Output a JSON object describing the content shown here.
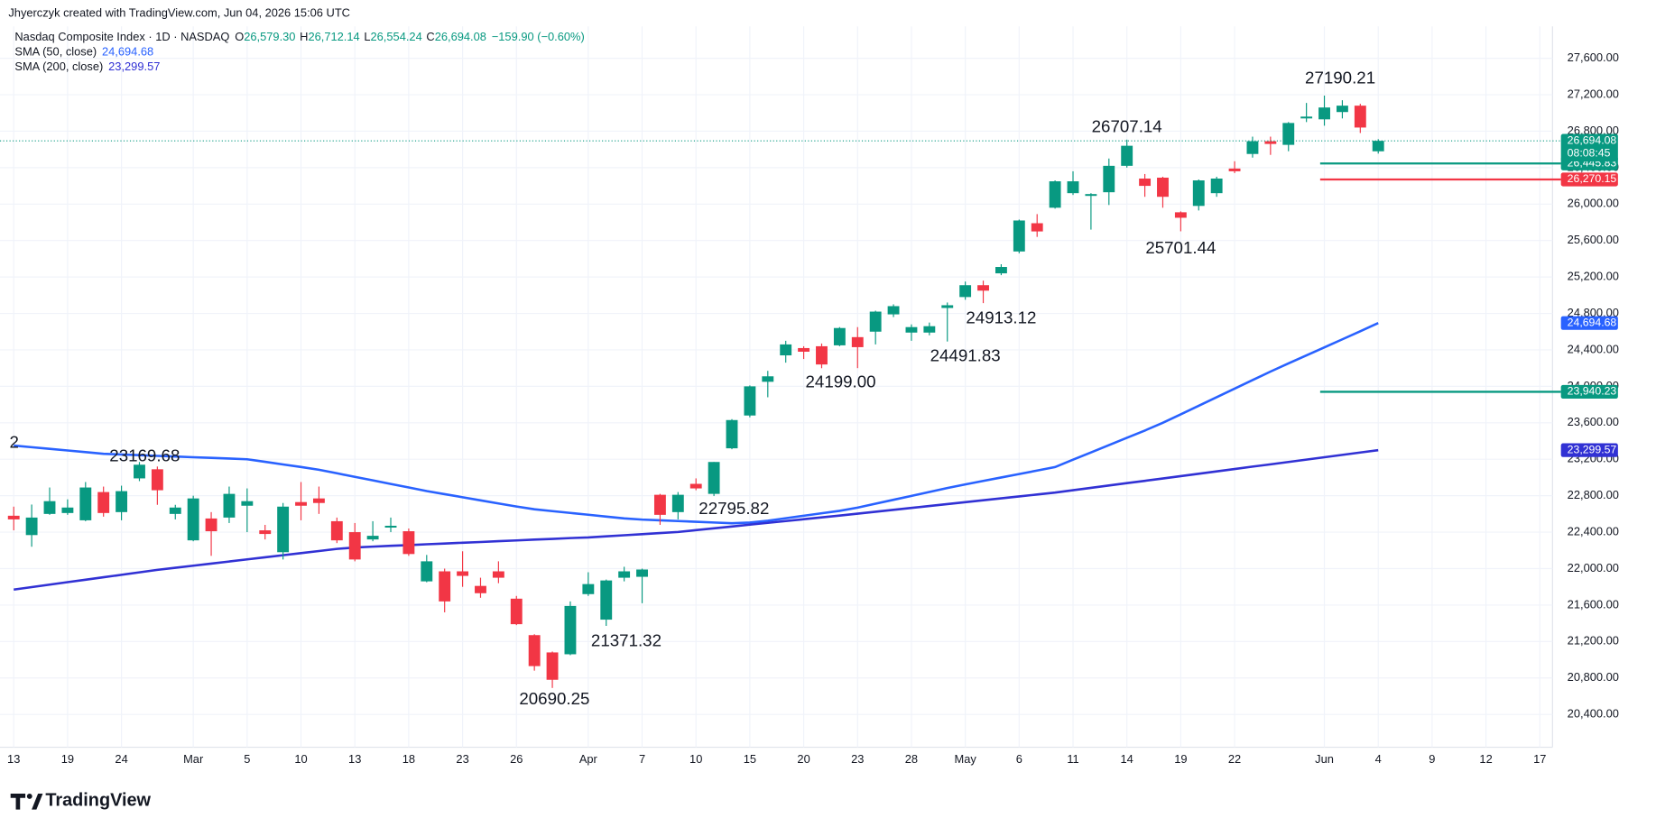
{
  "header": {
    "credit": "Jhyerczyk created with TradingView.com, Jun 04, 2026 15:06 UTC"
  },
  "footer": {
    "brand": "TradingView"
  },
  "chart_data": {
    "type": "candlestick",
    "title": "Nasdaq Composite Index · 1D · NASDAQ",
    "ohlc": [
      {
        "label": "O",
        "value": "26,579.30"
      },
      {
        "label": "H",
        "value": "26,712.14"
      },
      {
        "label": "L",
        "value": "26,554.24"
      },
      {
        "label": "C",
        "value": "26,694.08"
      }
    ],
    "change": "−159.90 (−0.60%)",
    "up_color": "#089981",
    "down_color": "#f23645",
    "categories": [
      "13",
      null,
      null,
      "19",
      null,
      null,
      "24",
      null,
      null,
      null,
      "Mar",
      null,
      null,
      "5",
      null,
      null,
      "10",
      null,
      null,
      "13",
      null,
      null,
      "18",
      null,
      null,
      "23",
      null,
      null,
      "26",
      null,
      null,
      null,
      "Apr",
      null,
      null,
      "7",
      null,
      null,
      "10",
      null,
      null,
      "15",
      null,
      null,
      "20",
      null,
      null,
      "23",
      null,
      null,
      "28",
      null,
      null,
      "May",
      null,
      null,
      "6",
      null,
      null,
      "11",
      null,
      null,
      "14",
      null,
      null,
      "19",
      null,
      null,
      "22",
      null,
      null,
      null,
      null,
      "Jun",
      null,
      null,
      "4",
      null,
      null,
      "9",
      null,
      null,
      "12",
      null,
      null,
      "17"
    ],
    "open": [
      22580,
      22368,
      22600,
      22610,
      22530,
      22840,
      22620,
      22990,
      23090,
      22600,
      22310,
      22550,
      22560,
      22690,
      22420,
      22180,
      22730,
      22770,
      22520,
      22400,
      22320,
      22450,
      22410,
      21860,
      21970,
      21970,
      21810,
      21970,
      21670,
      21270,
      21080,
      21060,
      21720,
      21440,
      21900,
      21910,
      22810,
      22620,
      22930,
      22820,
      23320,
      23680,
      24050,
      24340,
      24420,
      24440,
      24450,
      24540,
      24600,
      24790,
      24590,
      24590,
      24860,
      24980,
      25110,
      25240,
      25480,
      25790,
      25960,
      26120,
      26090,
      26130,
      26420,
      26280,
      26290,
      25910,
      25980,
      26120,
      26390,
      26550,
      26690,
      26650,
      26940,
      26930,
      27010,
      27080,
      26579.3,
      null,
      null,
      null,
      null,
      null,
      null,
      null,
      null,
      null
    ],
    "high": [
      22680,
      22703,
      22890,
      22760,
      22950,
      22900,
      22910,
      23169.68,
      23120,
      22700,
      22800,
      22620,
      22900,
      22880,
      22480,
      22720,
      22950,
      22900,
      22560,
      22500,
      22520,
      22560,
      22440,
      22150,
      22000,
      22190,
      21900,
      22080,
      21700,
      21280,
      21090,
      21640,
      21960,
      21880,
      22020,
      22000,
      22820,
      22840,
      22990,
      23170,
      23640,
      24010,
      24170,
      24500,
      24440,
      24470,
      24650,
      24650,
      24830,
      24900,
      24680,
      24700,
      24920,
      25150,
      25160,
      25340,
      25830,
      25890,
      26260,
      26360,
      26120,
      26500,
      26707.14,
      26330,
      26300,
      25920,
      26270,
      26300,
      26470,
      26740,
      26740,
      26900,
      27110,
      27190.21,
      27140,
      27100,
      26712.14,
      null,
      null,
      null,
      null,
      null,
      null,
      null,
      null,
      null
    ],
    "low": [
      22420,
      22240,
      22590,
      22590,
      22520,
      22570,
      22530,
      22960,
      22700,
      22540,
      22300,
      22140,
      22500,
      22400,
      22320,
      22100,
      22530,
      22600,
      22280,
      22080,
      22300,
      22400,
      22140,
      21850,
      21520,
      21800,
      21680,
      21840,
      21380,
      20880,
      20690.25,
      21050,
      21700,
      21371.32,
      21860,
      21620,
      22480,
      22540,
      22860,
      22795.82,
      23310,
      23660,
      23880,
      24260,
      24300,
      24199.0,
      24440,
      24200,
      24460,
      24760,
      24500,
      24560,
      24491.83,
      24950,
      24913.12,
      25220,
      25460,
      25640,
      25950,
      26100,
      25720,
      25990,
      26400,
      26080,
      25960,
      25701.44,
      25930,
      26080,
      26340,
      26510,
      26540,
      26580,
      26900,
      26860,
      26940,
      26780,
      26554.24,
      null,
      null,
      null,
      null,
      null,
      null,
      null,
      null,
      null
    ],
    "close": [
      22540,
      22560,
      22740,
      22670,
      22890,
      22610,
      22850,
      23140,
      22860,
      22670,
      22770,
      22410,
      22820,
      22740,
      22380,
      22680,
      22690,
      22720,
      22310,
      22100,
      22360,
      22470,
      22160,
      22080,
      21640,
      21920,
      21730,
      21900,
      21390,
      20930,
      20780,
      21590,
      21830,
      21870,
      21970,
      21990,
      22590,
      22810,
      22880,
      23170,
      23630,
      24000,
      24110,
      24460,
      24380,
      24240,
      24640,
      24430,
      24820,
      24880,
      24650,
      24660,
      24890,
      25110,
      25050,
      25310,
      25820,
      25700,
      26250,
      26250,
      26110,
      26420,
      26640,
      26200,
      26080,
      25850,
      26260,
      26280,
      26360,
      26690,
      26660,
      26890,
      26960,
      27060,
      27080,
      26840,
      26694.08,
      null,
      null,
      null,
      null,
      null,
      null,
      null,
      null,
      null
    ],
    "series": [
      {
        "name": "SMA (50, close)",
        "color": "#2962ff",
        "last_label": "24,694.68",
        "values": [
          23350,
          23332,
          23314,
          23296,
          23278,
          23260,
          23252,
          23245,
          23237,
          23230,
          23222,
          23215,
          23208,
          23200,
          23172,
          23143,
          23115,
          23085,
          23046,
          23007,
          22968,
          22929,
          22890,
          22851,
          22817,
          22783,
          22749,
          22715,
          22681,
          22651,
          22631,
          22611,
          22591,
          22571,
          22551,
          22538,
          22530,
          22522,
          22514,
          22506,
          22498,
          22505,
          22525,
          22553,
          22580,
          22607,
          22634,
          22669,
          22712,
          22755,
          22798,
          22841,
          22884,
          22924,
          22962,
          23000,
          23038,
          23076,
          23114,
          23195,
          23275,
          23355,
          23435,
          23515,
          23600,
          23693,
          23787,
          23881,
          23975,
          24069,
          24162,
          24252,
          24340,
          24428,
          24516,
          24604,
          24694.68,
          null,
          null,
          null,
          null,
          null,
          null,
          null,
          null,
          null
        ]
      },
      {
        "name": "SMA (200, close)",
        "color": "#3131d4",
        "last_label": "23,299.57",
        "values": [
          21770,
          21797,
          21824,
          21851,
          21878,
          21905,
          21932,
          21959,
          21986,
          22009,
          22032,
          22055,
          22078,
          22101,
          22124,
          22147,
          22170,
          22193,
          22216,
          22232,
          22241,
          22250,
          22258,
          22267,
          22275,
          22284,
          22292,
          22301,
          22309,
          22318,
          22326,
          22335,
          22342,
          22354,
          22366,
          22378,
          22390,
          22402,
          22422,
          22442,
          22462,
          22482,
          22502,
          22522,
          22542,
          22562,
          22582,
          22603,
          22624,
          22645,
          22666,
          22687,
          22708,
          22729,
          22750,
          22771,
          22792,
          22813,
          22834,
          22860,
          22886,
          22912,
          22938,
          22963,
          22989,
          23015,
          23041,
          23067,
          23093,
          23119,
          23144,
          23170,
          23196,
          23222,
          23248,
          23274,
          23299.57,
          null,
          null,
          null,
          null,
          null,
          null,
          null,
          null,
          null
        ]
      }
    ],
    "last_price": {
      "value": 26694.08,
      "label": "26,694.08",
      "countdown": "08:08:45",
      "color": "#089981"
    },
    "levels": [
      {
        "value": 26445.83,
        "label": "26,445.83",
        "color": "#089981"
      },
      {
        "value": 26270.15,
        "label": "26,270.15",
        "color": "#f23645"
      },
      {
        "value": 23940.23,
        "label": "23,940.23",
        "color": "#089981"
      }
    ],
    "annotations": [
      "2",
      "23169.68",
      "27190.21",
      "26707.14",
      "25701.44",
      "24913.12",
      "24491.83",
      "24199.00",
      "22795.82",
      "21371.32",
      "20690.25"
    ],
    "ylim": [
      20040,
      27950
    ],
    "yticks": [
      {
        "value": 27600,
        "label": "27,600.00"
      },
      {
        "value": 27200,
        "label": "27,200.00"
      },
      {
        "value": 26800,
        "label": "26,800.00"
      },
      {
        "value": 26400,
        "label": "26,400.00"
      },
      {
        "value": 26000,
        "label": "26,000.00"
      },
      {
        "value": 25600,
        "label": "25,600.00"
      },
      {
        "value": 25200,
        "label": "25,200.00"
      },
      {
        "value": 24800,
        "label": "24,800.00"
      },
      {
        "value": 24400,
        "label": "24,400.00"
      },
      {
        "value": 24000,
        "label": "24,000.00"
      },
      {
        "value": 23600,
        "label": "23,600.00"
      },
      {
        "value": 23200,
        "label": "23,200.00"
      },
      {
        "value": 22800,
        "label": "22,800.00"
      },
      {
        "value": 22400,
        "label": "22,400.00"
      },
      {
        "value": 22000,
        "label": "22,000.00"
      },
      {
        "value": 21600,
        "label": "21,600.00"
      },
      {
        "value": 21200,
        "label": "21,200.00"
      },
      {
        "value": 20800,
        "label": "20,800.00"
      },
      {
        "value": 20400,
        "label": "20,400.00"
      }
    ],
    "grid": true
  }
}
